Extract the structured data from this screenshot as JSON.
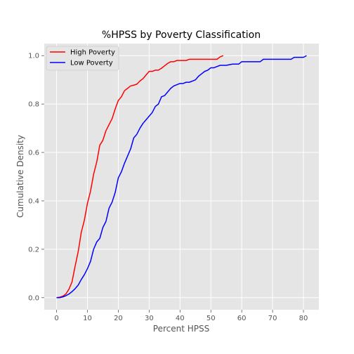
{
  "chart_data": {
    "type": "line",
    "title": "%HPSS by Poverty Classification",
    "xlabel": "Percent HPSS",
    "ylabel": "Cumulative Density",
    "xlim": [
      -4,
      85
    ],
    "ylim": [
      -0.05,
      1.05
    ],
    "xticks": [
      0,
      10,
      20,
      30,
      40,
      50,
      60,
      70,
      80
    ],
    "yticks": [
      0.0,
      0.2,
      0.4,
      0.6,
      0.8,
      1.0
    ],
    "xtick_labels": [
      "0",
      "10",
      "20",
      "30",
      "40",
      "50",
      "60",
      "70",
      "80"
    ],
    "ytick_labels": [
      "0.0",
      "0.2",
      "0.4",
      "0.6",
      "0.8",
      "1.0"
    ],
    "grid": true,
    "legend_position": "top-left",
    "series": [
      {
        "name": "High Poverty",
        "color": "#ff0000",
        "points": [
          [
            0,
            0.0
          ],
          [
            1,
            0.002
          ],
          [
            2,
            0.006
          ],
          [
            3,
            0.015
          ],
          [
            4,
            0.035
          ],
          [
            5,
            0.065
          ],
          [
            6,
            0.13
          ],
          [
            7,
            0.19
          ],
          [
            8,
            0.27
          ],
          [
            9,
            0.32
          ],
          [
            10,
            0.39
          ],
          [
            11,
            0.44
          ],
          [
            12,
            0.51
          ],
          [
            13,
            0.56
          ],
          [
            14,
            0.63
          ],
          [
            15,
            0.65
          ],
          [
            16,
            0.69
          ],
          [
            17,
            0.715
          ],
          [
            18,
            0.74
          ],
          [
            19,
            0.78
          ],
          [
            20,
            0.815
          ],
          [
            21,
            0.83
          ],
          [
            22,
            0.855
          ],
          [
            23,
            0.865
          ],
          [
            24,
            0.875
          ],
          [
            25,
            0.878
          ],
          [
            26,
            0.882
          ],
          [
            27,
            0.895
          ],
          [
            28,
            0.905
          ],
          [
            29,
            0.92
          ],
          [
            30,
            0.935
          ],
          [
            31,
            0.935
          ],
          [
            32,
            0.94
          ],
          [
            33,
            0.94
          ],
          [
            34,
            0.948
          ],
          [
            35,
            0.958
          ],
          [
            36,
            0.968
          ],
          [
            37,
            0.975
          ],
          [
            38,
            0.975
          ],
          [
            39,
            0.98
          ],
          [
            40,
            0.98
          ],
          [
            41,
            0.98
          ],
          [
            42,
            0.98
          ],
          [
            43,
            0.985
          ],
          [
            44,
            0.985
          ],
          [
            45,
            0.985
          ],
          [
            46,
            0.985
          ],
          [
            47,
            0.985
          ],
          [
            48,
            0.985
          ],
          [
            49,
            0.985
          ],
          [
            50,
            0.985
          ],
          [
            51,
            0.985
          ],
          [
            52,
            0.985
          ],
          [
            53,
            0.995
          ],
          [
            54,
            1.0
          ]
        ]
      },
      {
        "name": "Low Poverty",
        "color": "#0000ff",
        "points": [
          [
            0,
            0.0
          ],
          [
            1,
            0.0
          ],
          [
            2,
            0.003
          ],
          [
            3,
            0.008
          ],
          [
            4,
            0.015
          ],
          [
            5,
            0.025
          ],
          [
            6,
            0.037
          ],
          [
            7,
            0.052
          ],
          [
            8,
            0.075
          ],
          [
            9,
            0.095
          ],
          [
            10,
            0.12
          ],
          [
            11,
            0.15
          ],
          [
            12,
            0.2
          ],
          [
            13,
            0.23
          ],
          [
            14,
            0.245
          ],
          [
            15,
            0.29
          ],
          [
            16,
            0.315
          ],
          [
            17,
            0.37
          ],
          [
            18,
            0.395
          ],
          [
            19,
            0.435
          ],
          [
            20,
            0.495
          ],
          [
            21,
            0.52
          ],
          [
            22,
            0.555
          ],
          [
            23,
            0.585
          ],
          [
            24,
            0.615
          ],
          [
            25,
            0.66
          ],
          [
            26,
            0.675
          ],
          [
            27,
            0.7
          ],
          [
            28,
            0.72
          ],
          [
            29,
            0.735
          ],
          [
            30,
            0.75
          ],
          [
            31,
            0.765
          ],
          [
            32,
            0.79
          ],
          [
            33,
            0.8
          ],
          [
            34,
            0.83
          ],
          [
            35,
            0.835
          ],
          [
            36,
            0.85
          ],
          [
            37,
            0.865
          ],
          [
            38,
            0.875
          ],
          [
            39,
            0.88
          ],
          [
            40,
            0.885
          ],
          [
            41,
            0.885
          ],
          [
            42,
            0.89
          ],
          [
            43,
            0.89
          ],
          [
            44,
            0.895
          ],
          [
            45,
            0.9
          ],
          [
            46,
            0.915
          ],
          [
            47,
            0.925
          ],
          [
            48,
            0.935
          ],
          [
            49,
            0.94
          ],
          [
            50,
            0.95
          ],
          [
            51,
            0.95
          ],
          [
            52,
            0.955
          ],
          [
            53,
            0.96
          ],
          [
            55,
            0.96
          ],
          [
            57,
            0.965
          ],
          [
            59,
            0.965
          ],
          [
            60,
            0.975
          ],
          [
            62,
            0.975
          ],
          [
            64,
            0.975
          ],
          [
            66,
            0.975
          ],
          [
            67,
            0.985
          ],
          [
            70,
            0.985
          ],
          [
            73,
            0.985
          ],
          [
            75,
            0.985
          ],
          [
            76,
            0.985
          ],
          [
            77,
            0.993
          ],
          [
            79,
            0.993
          ],
          [
            80,
            0.993
          ],
          [
            81,
            1.0
          ]
        ]
      }
    ]
  }
}
